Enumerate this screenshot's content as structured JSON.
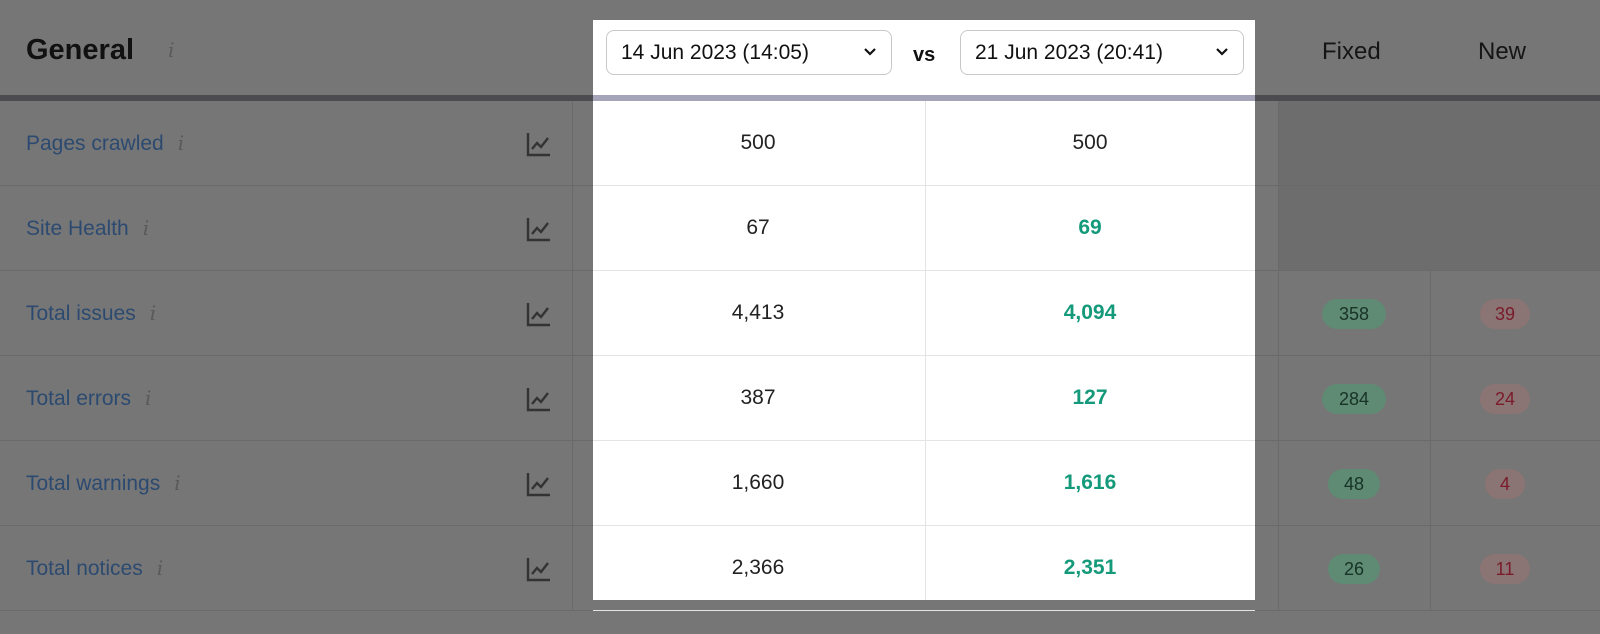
{
  "header": {
    "title": "General",
    "columns": {
      "fixed": "Fixed",
      "new": "New"
    }
  },
  "compare": {
    "date1": "14 Jun 2023 (14:05)",
    "vs": "vs",
    "date2": "21 Jun 2023 (20:41)"
  },
  "colors": {
    "improved": "#149a7a",
    "fixed_badge": "#5f8a74",
    "new_badge": "#8a7474"
  },
  "rows": [
    {
      "label": "Pages crawled",
      "v1": "500",
      "v2": "500",
      "improved": false,
      "fixed": null,
      "new": null
    },
    {
      "label": "Site Health",
      "v1": "67",
      "v2": "69",
      "improved": true,
      "fixed": null,
      "new": null
    },
    {
      "label": "Total issues",
      "v1": "4,413",
      "v2": "4,094",
      "improved": true,
      "fixed": "358",
      "new": "39"
    },
    {
      "label": "Total errors",
      "v1": "387",
      "v2": "127",
      "improved": true,
      "fixed": "284",
      "new": "24"
    },
    {
      "label": "Total warnings",
      "v1": "1,660",
      "v2": "1,616",
      "improved": true,
      "fixed": "48",
      "new": "4"
    },
    {
      "label": "Total notices",
      "v1": "2,366",
      "v2": "2,351",
      "improved": true,
      "fixed": "26",
      "new": "11"
    }
  ]
}
